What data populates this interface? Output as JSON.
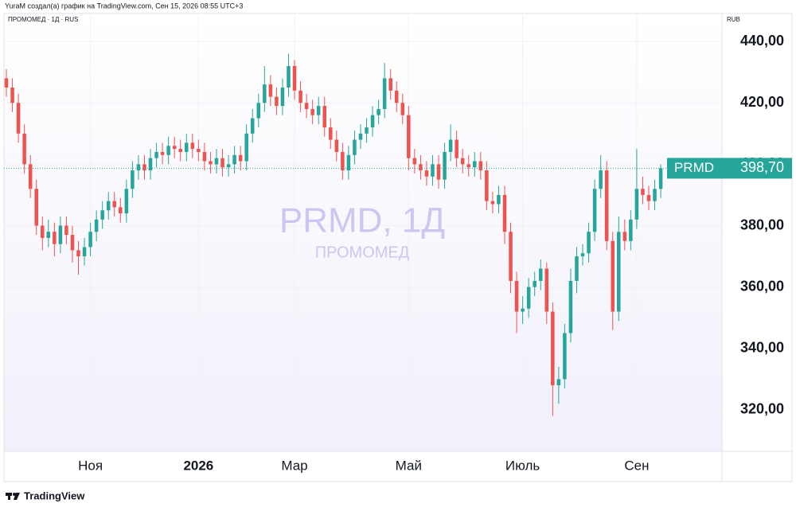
{
  "chart_data": {
    "type": "candlestick",
    "attribution": "YuraM создал(а) график на TradingView.com, Сен 15, 2026 08:55 UTC+3",
    "title": "ПРОМОМЕД · 1Д · RUS",
    "currency": "RUB",
    "watermark": "PRMD, 1Д",
    "watermark_subtitle": "ПРОМОМЕД",
    "brand": "TradingView",
    "symbol": "PRMD",
    "last_price": {
      "value": 398.7,
      "label": "398,70"
    },
    "up_color": "#26a69a",
    "down_color": "#ef5350",
    "grid": true,
    "xlim": [
      -0.4,
      119.2
    ],
    "xticks": [
      {
        "value": 14,
        "label": "Ноя"
      },
      {
        "value": 32,
        "label": "2026"
      },
      {
        "value": 48,
        "label": "Мар"
      },
      {
        "value": 67,
        "label": "Май"
      },
      {
        "value": 86,
        "label": "Июль"
      },
      {
        "value": 105,
        "label": "Сен"
      }
    ],
    "ylim": [
      306.5,
      449.1
    ],
    "yticks": [
      {
        "value": 320,
        "label": "320,00"
      },
      {
        "value": 340,
        "label": "340,00"
      },
      {
        "value": 360,
        "label": "360,00"
      },
      {
        "value": 380,
        "label": "380,00"
      },
      {
        "value": 400,
        "label": "400,00"
      },
      {
        "value": 420,
        "label": "420,00"
      },
      {
        "value": 440,
        "label": "440,00"
      }
    ],
    "open": [
      428,
      425,
      420,
      410,
      400,
      392,
      380,
      376,
      378,
      374,
      380,
      377,
      372,
      370,
      373,
      378,
      382,
      385,
      388,
      386,
      384,
      392,
      398,
      400,
      398,
      402,
      404,
      403,
      406,
      405,
      404,
      407,
      405,
      404,
      401,
      400,
      402,
      399,
      400,
      403,
      401,
      410,
      415,
      420,
      426,
      422,
      419,
      425,
      432,
      424,
      420,
      418,
      416,
      419,
      412,
      408,
      404,
      398,
      403,
      408,
      410,
      412,
      416,
      418,
      428,
      424,
      420,
      416,
      402,
      400,
      398,
      396,
      400,
      395,
      404,
      408,
      402,
      400,
      399,
      401,
      398,
      388,
      387,
      390,
      378,
      362,
      352,
      353,
      360,
      362,
      366,
      352,
      328,
      330,
      345,
      362,
      370,
      371,
      378,
      392,
      398,
      375,
      352,
      378,
      375,
      382,
      392,
      390,
      388,
      392
    ],
    "high": [
      431,
      428,
      423,
      413,
      403,
      395,
      383,
      382,
      381,
      383,
      383,
      380,
      375,
      376,
      381,
      385,
      388,
      391,
      391,
      389,
      395,
      401,
      403,
      403,
      405,
      407,
      407,
      409,
      409,
      408,
      410,
      410,
      408,
      407,
      404,
      405,
      405,
      403,
      406,
      406,
      413,
      418,
      423,
      432,
      429,
      425,
      428,
      436,
      434,
      427,
      423,
      421,
      422,
      422,
      415,
      411,
      407,
      406,
      411,
      413,
      415,
      419,
      421,
      433,
      431,
      427,
      423,
      419,
      405,
      403,
      401,
      403,
      403,
      407,
      413,
      411,
      405,
      403,
      404,
      404,
      401,
      391,
      393,
      393,
      381,
      365,
      357,
      363,
      365,
      369,
      368,
      355,
      334,
      348,
      366,
      373,
      374,
      381,
      395,
      403,
      401,
      378,
      383,
      382,
      385,
      405,
      396,
      393,
      395,
      400
    ],
    "low": [
      422,
      417,
      407,
      397,
      389,
      377,
      372,
      373,
      370,
      371,
      374,
      368,
      364,
      367,
      370,
      375,
      379,
      382,
      383,
      381,
      381,
      389,
      395,
      395,
      395,
      399,
      400,
      400,
      402,
      401,
      401,
      402,
      401,
      398,
      397,
      397,
      396,
      396,
      397,
      398,
      398,
      407,
      412,
      417,
      419,
      416,
      416,
      422,
      421,
      417,
      415,
      413,
      413,
      409,
      405,
      401,
      395,
      395,
      400,
      405,
      407,
      409,
      413,
      415,
      421,
      417,
      413,
      398,
      397,
      395,
      393,
      393,
      392,
      392,
      401,
      399,
      397,
      396,
      396,
      395,
      385,
      384,
      384,
      374,
      358,
      345,
      348,
      350,
      357,
      359,
      348,
      318,
      322,
      327,
      342,
      358,
      367,
      368,
      375,
      389,
      372,
      346,
      349,
      372,
      372,
      379,
      387,
      385,
      385,
      389
    ],
    "close": [
      425,
      420,
      410,
      400,
      392,
      380,
      376,
      378,
      374,
      380,
      377,
      372,
      370,
      373,
      378,
      382,
      385,
      388,
      386,
      384,
      392,
      398,
      400,
      398,
      402,
      404,
      403,
      406,
      405,
      404,
      407,
      405,
      404,
      401,
      400,
      402,
      399,
      400,
      403,
      401,
      410,
      415,
      420,
      426,
      422,
      419,
      425,
      432,
      424,
      420,
      418,
      416,
      419,
      412,
      408,
      404,
      398,
      403,
      408,
      410,
      412,
      416,
      418,
      428,
      424,
      420,
      416,
      402,
      400,
      398,
      396,
      400,
      395,
      404,
      408,
      402,
      400,
      399,
      401,
      398,
      388,
      387,
      390,
      378,
      362,
      352,
      353,
      360,
      362,
      366,
      352,
      328,
      330,
      345,
      362,
      370,
      371,
      378,
      392,
      398,
      375,
      352,
      378,
      375,
      382,
      392,
      390,
      388,
      392,
      398.7
    ]
  }
}
